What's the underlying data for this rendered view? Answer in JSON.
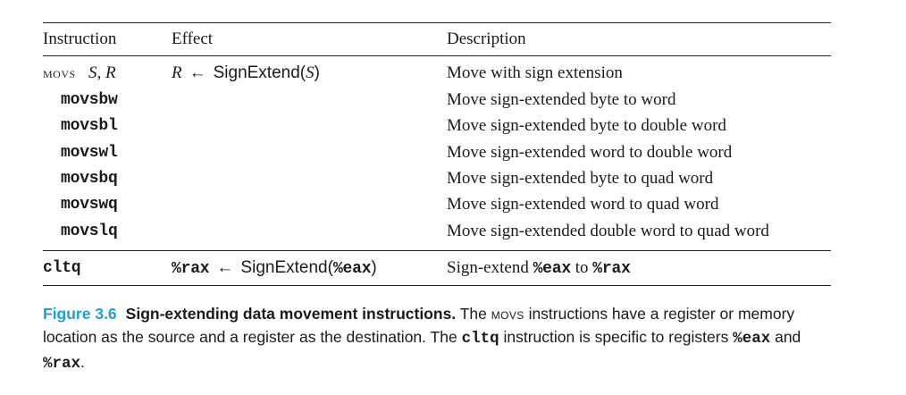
{
  "table": {
    "headers": {
      "instruction": "Instruction",
      "effect": "Effect",
      "description": "Description"
    },
    "movs_row": {
      "instruction_name": "movs",
      "operands": "S, R",
      "effect_dest": "R",
      "effect_arrow": "←",
      "effect_func": "SignExtend(",
      "effect_arg": "S",
      "effect_close": ")",
      "description": "Move with sign extension"
    },
    "variants": [
      {
        "instruction": "movsbw",
        "description": "Move sign-extended byte to word"
      },
      {
        "instruction": "movsbl",
        "description": "Move sign-extended byte to double word"
      },
      {
        "instruction": "movswl",
        "description": "Move sign-extended word to double word"
      },
      {
        "instruction": "movsbq",
        "description": "Move sign-extended byte to quad word"
      },
      {
        "instruction": "movswq",
        "description": "Move sign-extended word to quad word"
      },
      {
        "instruction": "movslq",
        "description": "Move sign-extended double word to quad word"
      }
    ],
    "cltq_row": {
      "instruction": "cltq",
      "effect_dest": "%rax",
      "effect_arrow": "←",
      "effect_func": "SignExtend(",
      "effect_arg": "%eax",
      "effect_close": ")",
      "desc_prefix": "Sign-extend ",
      "desc_reg1": "%eax",
      "desc_mid": " to ",
      "desc_reg2": "%rax"
    }
  },
  "caption": {
    "label": "Figure 3.6",
    "title": "Sign-extending data movement instructions.",
    "text1": " The ",
    "movs": "movs",
    "text2": " instructions have a register or memory location as the source and a register as the destination. The ",
    "cltq": "cltq",
    "text3": " instruction is specific to registers ",
    "reg1": "%eax",
    "text4": " and ",
    "reg2": "%rax",
    "text5": "."
  },
  "colors": {
    "figure_label": "#1f9fd0",
    "rule": "#222222",
    "text": "#1a1a1a"
  }
}
